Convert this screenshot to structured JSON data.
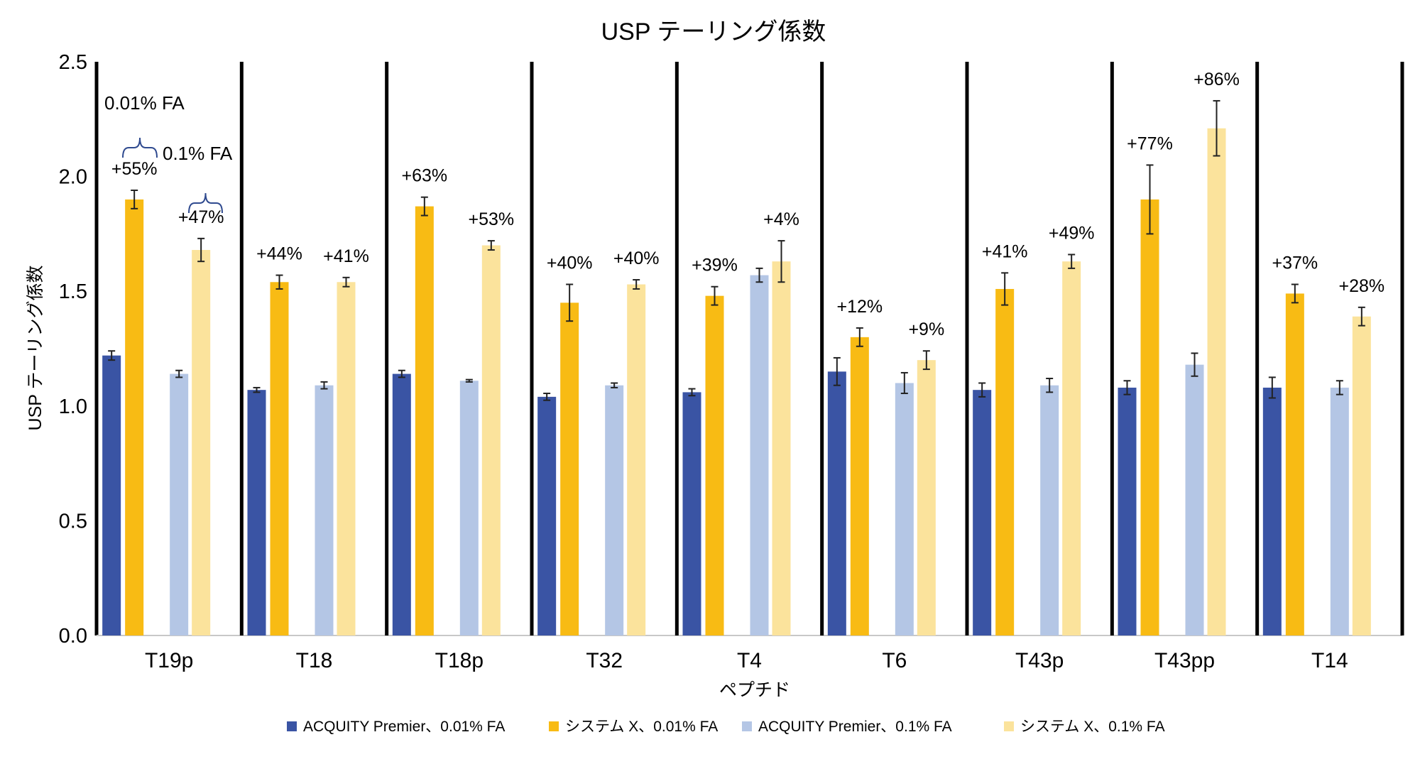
{
  "chart_data": {
    "type": "bar",
    "title": "USP テーリング係数",
    "xlabel": "ペプチド",
    "ylabel": "USP テーリング係数",
    "ylim": [
      0,
      2.5
    ],
    "yticks": [
      "0.0",
      "0.5",
      "1.0",
      "1.5",
      "2.0",
      "2.5"
    ],
    "grid": false,
    "legend_position": "bottom",
    "categories": [
      "T19p",
      "T18",
      "T18p",
      "T32",
      "T4",
      "T6",
      "T43p",
      "T43pp",
      "T14"
    ],
    "series": [
      {
        "name": "ACQUITY Premier、0.01% FA",
        "color": "#3a54a4",
        "values": [
          1.22,
          1.07,
          1.14,
          1.04,
          1.06,
          1.15,
          1.07,
          1.08,
          1.08
        ],
        "errors": [
          0.02,
          0.01,
          0.015,
          0.015,
          0.015,
          0.06,
          0.03,
          0.03,
          0.045
        ]
      },
      {
        "name": "システム X、0.01% FA",
        "color": "#f8bb14",
        "values": [
          1.9,
          1.54,
          1.87,
          1.45,
          1.48,
          1.3,
          1.51,
          1.9,
          1.49
        ],
        "errors": [
          0.04,
          0.03,
          0.04,
          0.08,
          0.04,
          0.04,
          0.07,
          0.15,
          0.04
        ]
      },
      {
        "name": "ACQUITY Premier、0.1% FA",
        "color": "#b4c6e5",
        "values": [
          1.14,
          1.09,
          1.11,
          1.09,
          1.57,
          1.1,
          1.09,
          1.18,
          1.08
        ],
        "errors": [
          0.015,
          0.015,
          0.005,
          0.01,
          0.03,
          0.045,
          0.03,
          0.05,
          0.03
        ]
      },
      {
        "name": "システム X、0.1% FA",
        "color": "#fbe39c",
        "values": [
          1.68,
          1.54,
          1.7,
          1.53,
          1.63,
          1.2,
          1.63,
          2.21,
          1.39
        ],
        "errors": [
          0.05,
          0.02,
          0.02,
          0.02,
          0.09,
          0.04,
          0.03,
          0.12,
          0.04
        ]
      }
    ],
    "pct_labels_0_01FA": [
      "+55%",
      "+44%",
      "+63%",
      "+40%",
      "+39%",
      "+12%",
      "+41%",
      "+77%",
      "+37%"
    ],
    "pct_labels_0_1FA": [
      "+47%",
      "+41%",
      "+53%",
      "+40%",
      "+4%",
      "+9%",
      "+49%",
      "+86%",
      "+28%"
    ],
    "annotations": {
      "fa_low": "0.01% FA",
      "fa_high": "0.1% FA"
    }
  },
  "colors": {
    "bracket": "#2f4a8f",
    "divider": "#000000",
    "errorbar": "#222222"
  }
}
